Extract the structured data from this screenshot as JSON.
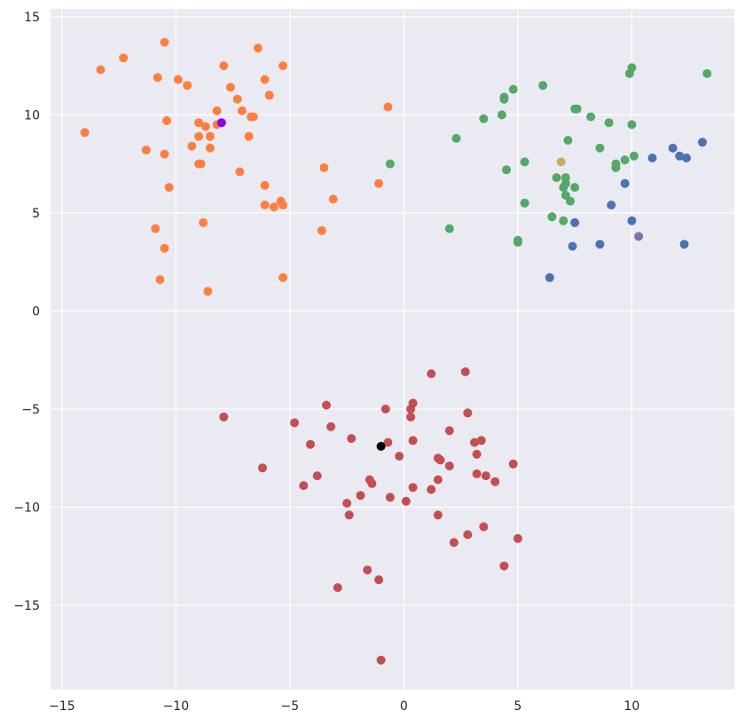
{
  "chart_data": {
    "type": "scatter",
    "title": "",
    "xlabel": "",
    "ylabel": "",
    "xlim": [
      -15.5,
      14.5
    ],
    "ylim": [
      -19.3,
      15.4
    ],
    "x_ticks": [
      -15,
      -10,
      -5,
      0,
      5,
      10
    ],
    "y_ticks": [
      15,
      10,
      5,
      0,
      -5,
      -10,
      -15
    ],
    "grid": true,
    "legend": "none",
    "background_color": "#eaeaf2",
    "grid_color": "#ffffff",
    "series": [
      {
        "color": "#fd7f3f",
        "points": [
          [
            -10.5,
            13.7
          ],
          [
            -13.3,
            12.3
          ],
          [
            -12.3,
            12.9
          ],
          [
            -10.8,
            11.9
          ],
          [
            -9.9,
            11.8
          ],
          [
            -9.5,
            11.5
          ],
          [
            -7.9,
            12.5
          ],
          [
            -7.6,
            11.4
          ],
          [
            -7.3,
            10.8
          ],
          [
            -6.4,
            13.4
          ],
          [
            -6.1,
            11.8
          ],
          [
            -5.9,
            11.0
          ],
          [
            -5.3,
            12.5
          ],
          [
            -10.4,
            9.7
          ],
          [
            -9.0,
            9.6
          ],
          [
            -8.7,
            9.4
          ],
          [
            -8.2,
            10.2
          ],
          [
            -8.2,
            9.5
          ],
          [
            -9.0,
            8.9
          ],
          [
            -8.5,
            8.9
          ],
          [
            -7.1,
            10.2
          ],
          [
            -6.7,
            9.9
          ],
          [
            -6.6,
            9.9
          ],
          [
            -6.8,
            8.9
          ],
          [
            -14.0,
            9.1
          ],
          [
            -11.3,
            8.2
          ],
          [
            -10.5,
            8.0
          ],
          [
            -9.3,
            8.4
          ],
          [
            -8.5,
            8.3
          ],
          [
            -9.0,
            7.5
          ],
          [
            -8.9,
            7.5
          ],
          [
            -7.2,
            7.1
          ],
          [
            -10.3,
            6.3
          ],
          [
            -6.1,
            6.4
          ],
          [
            -6.1,
            5.4
          ],
          [
            -5.7,
            5.3
          ],
          [
            -5.4,
            5.6
          ],
          [
            -5.3,
            5.4
          ],
          [
            -3.5,
            7.3
          ],
          [
            -3.1,
            5.7
          ],
          [
            -1.1,
            6.5
          ],
          [
            -0.7,
            10.4
          ],
          [
            -3.6,
            4.1
          ],
          [
            -10.9,
            4.2
          ],
          [
            -8.8,
            4.5
          ],
          [
            -10.5,
            3.2
          ],
          [
            -10.7,
            1.6
          ],
          [
            -8.6,
            1.0
          ],
          [
            -5.3,
            1.7
          ]
        ]
      },
      {
        "color": "#55a868",
        "points": [
          [
            -0.6,
            7.5
          ],
          [
            2.0,
            4.2
          ],
          [
            2.3,
            8.8
          ],
          [
            3.5,
            9.8
          ],
          [
            4.3,
            10.0
          ],
          [
            4.4,
            10.8
          ],
          [
            4.4,
            10.9
          ],
          [
            4.8,
            11.3
          ],
          [
            4.5,
            7.2
          ],
          [
            5.3,
            7.6
          ],
          [
            5.0,
            3.6
          ],
          [
            5.0,
            3.5
          ],
          [
            5.3,
            5.5
          ],
          [
            6.1,
            11.5
          ],
          [
            6.5,
            4.8
          ],
          [
            6.7,
            6.8
          ],
          [
            7.0,
            6.3
          ],
          [
            7.1,
            6.5
          ],
          [
            7.1,
            6.8
          ],
          [
            7.0,
            4.6
          ],
          [
            7.1,
            5.9
          ],
          [
            7.3,
            5.6
          ],
          [
            7.5,
            6.3
          ],
          [
            7.2,
            8.7
          ],
          [
            7.5,
            10.3
          ],
          [
            7.6,
            10.3
          ],
          [
            8.2,
            9.9
          ],
          [
            8.6,
            8.3
          ],
          [
            9.0,
            9.6
          ],
          [
            9.3,
            7.5
          ],
          [
            9.3,
            7.3
          ],
          [
            9.7,
            7.7
          ],
          [
            10.0,
            9.5
          ],
          [
            10.1,
            7.9
          ],
          [
            9.9,
            12.1
          ],
          [
            10.0,
            12.4
          ],
          [
            13.3,
            12.1
          ]
        ]
      },
      {
        "color": "#4c72b0",
        "points": [
          [
            6.4,
            1.7
          ],
          [
            7.4,
            3.3
          ],
          [
            7.5,
            4.5
          ],
          [
            8.6,
            3.4
          ],
          [
            9.1,
            5.4
          ],
          [
            9.7,
            6.5
          ],
          [
            10.0,
            4.6
          ],
          [
            10.9,
            7.8
          ],
          [
            11.8,
            8.3
          ],
          [
            12.1,
            7.9
          ],
          [
            12.4,
            7.8
          ],
          [
            12.3,
            3.4
          ],
          [
            13.1,
            8.6
          ]
        ]
      },
      {
        "color": "#c44e52",
        "points": [
          [
            -7.9,
            -5.4
          ],
          [
            -6.2,
            -8.0
          ],
          [
            -4.8,
            -5.7
          ],
          [
            -4.1,
            -6.8
          ],
          [
            -4.4,
            -8.9
          ],
          [
            -3.8,
            -8.4
          ],
          [
            -3.4,
            -4.8
          ],
          [
            -3.2,
            -5.9
          ],
          [
            -2.3,
            -6.5
          ],
          [
            -2.5,
            -9.8
          ],
          [
            -2.4,
            -10.4
          ],
          [
            -1.9,
            -9.4
          ],
          [
            -1.5,
            -8.6
          ],
          [
            -1.4,
            -8.8
          ],
          [
            -0.8,
            -5.0
          ],
          [
            -0.7,
            -6.7
          ],
          [
            -0.6,
            -9.5
          ],
          [
            -0.2,
            -7.4
          ],
          [
            0.1,
            -9.7
          ],
          [
            0.3,
            -5.0
          ],
          [
            0.4,
            -4.7
          ],
          [
            0.3,
            -5.4
          ],
          [
            0.4,
            -6.6
          ],
          [
            0.4,
            -9.0
          ],
          [
            1.2,
            -3.2
          ],
          [
            1.2,
            -9.1
          ],
          [
            1.5,
            -7.5
          ],
          [
            1.6,
            -7.6
          ],
          [
            1.5,
            -8.6
          ],
          [
            1.5,
            -10.4
          ],
          [
            2.0,
            -6.1
          ],
          [
            2.0,
            -7.9
          ],
          [
            2.7,
            -3.1
          ],
          [
            2.8,
            -5.2
          ],
          [
            3.1,
            -6.7
          ],
          [
            3.2,
            -7.3
          ],
          [
            3.4,
            -6.6
          ],
          [
            3.2,
            -8.3
          ],
          [
            3.6,
            -8.4
          ],
          [
            4.0,
            -8.7
          ],
          [
            4.8,
            -7.8
          ],
          [
            2.2,
            -11.8
          ],
          [
            2.8,
            -11.4
          ],
          [
            3.5,
            -11.0
          ],
          [
            5.0,
            -11.6
          ],
          [
            4.4,
            -13.0
          ],
          [
            -1.6,
            -13.2
          ],
          [
            -1.1,
            -13.7
          ],
          [
            -2.9,
            -14.1
          ],
          [
            -1.0,
            -17.8
          ]
        ]
      },
      {
        "color": "#8c00e6",
        "points": [
          [
            -8.0,
            9.6
          ]
        ]
      },
      {
        "color": "#c4ad66",
        "points": [
          [
            6.9,
            7.6
          ]
        ]
      },
      {
        "color": "#8172b2",
        "points": [
          [
            10.3,
            3.8
          ]
        ]
      },
      {
        "color": "#000000",
        "points": [
          [
            -1.0,
            -6.9
          ]
        ]
      }
    ]
  }
}
